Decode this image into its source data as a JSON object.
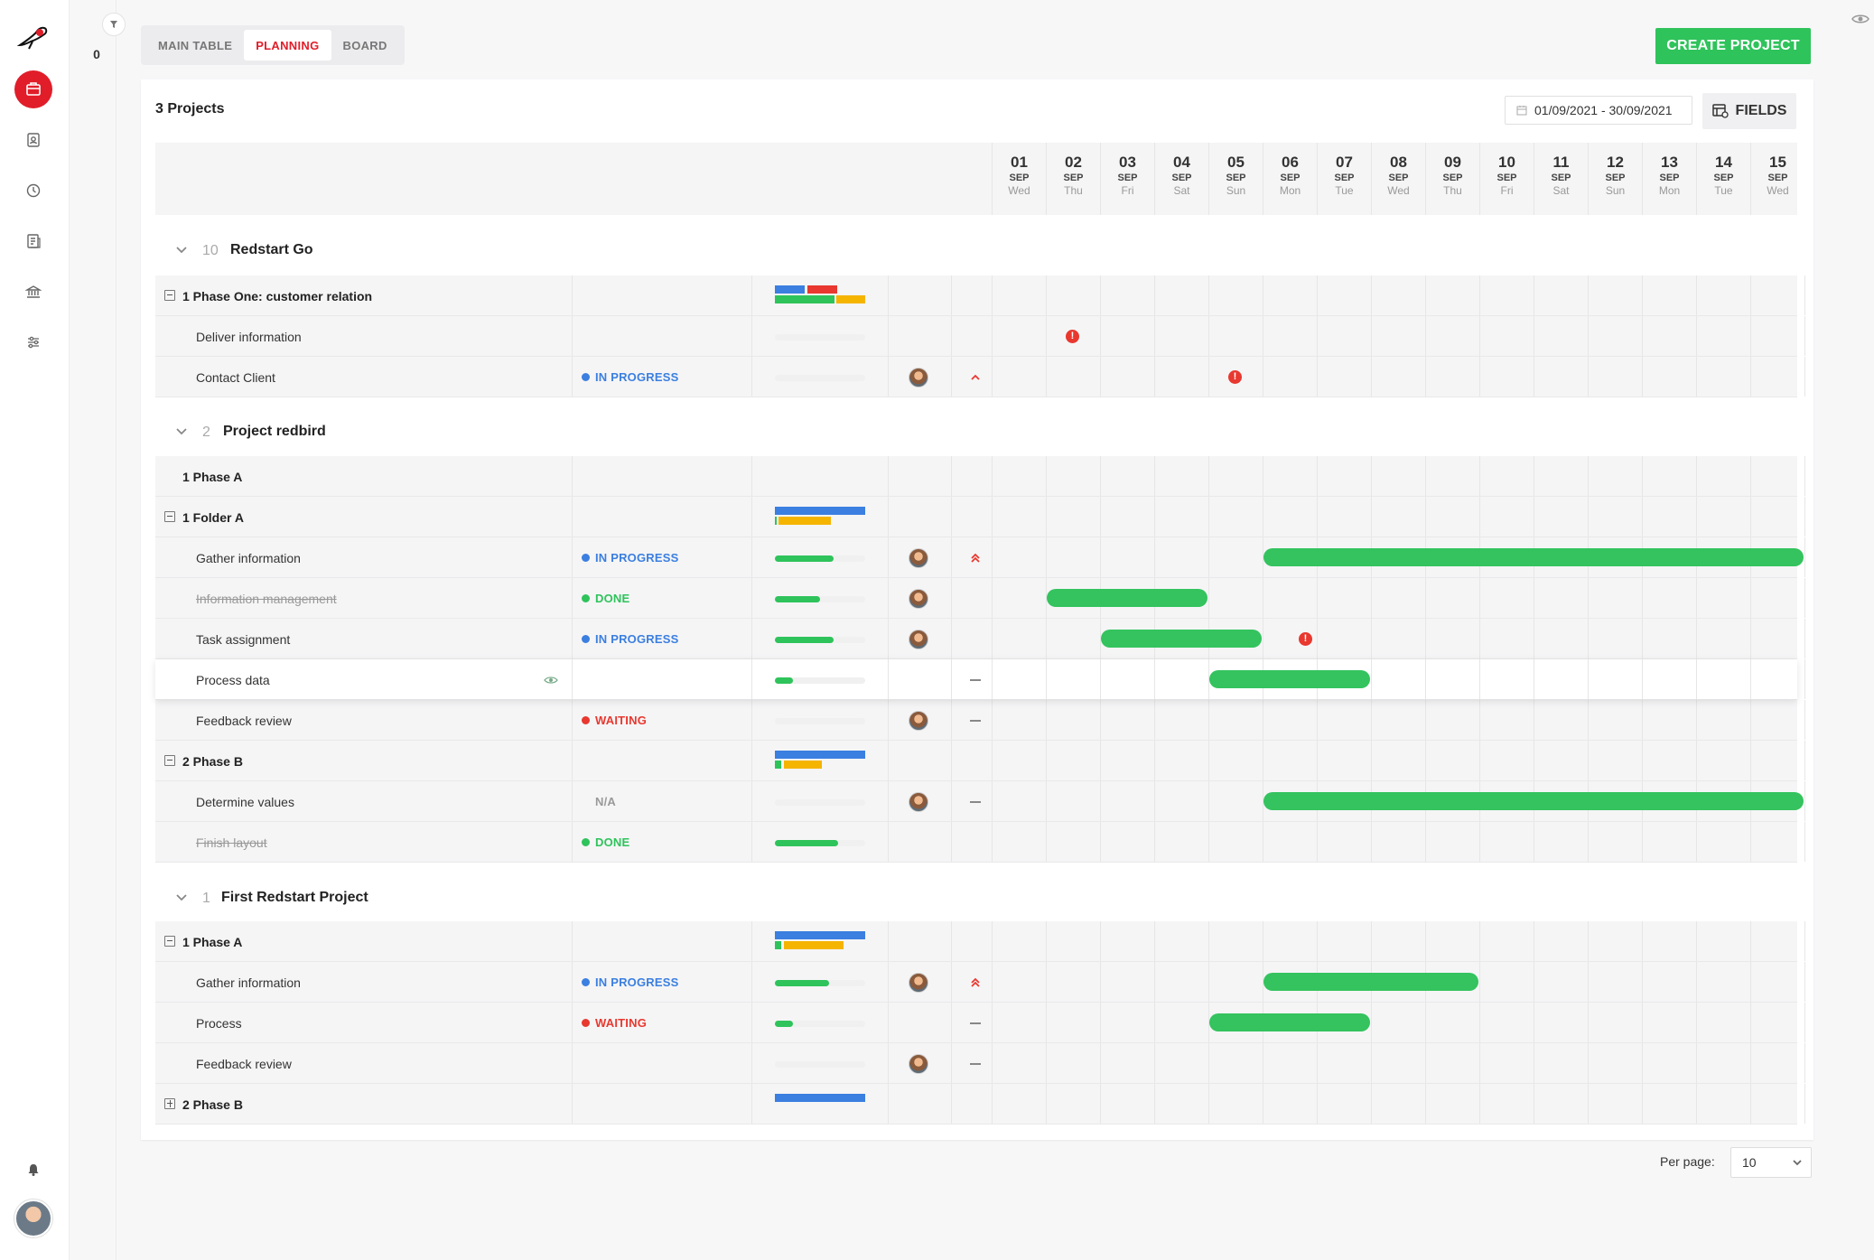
{
  "tabs": [
    "MAIN TABLE",
    "PLANNING",
    "BOARD"
  ],
  "active_tab": "PLANNING",
  "filter_count": "0",
  "create_button": "CREATE PROJECT",
  "projects_count": "3 Projects",
  "date_range": "01/09/2021 - 30/09/2021",
  "fields_button": "FIELDS",
  "per_page_label": "Per page:",
  "per_page_value": "10",
  "dates": [
    {
      "d": "01",
      "m": "SEP",
      "w": "Wed"
    },
    {
      "d": "02",
      "m": "SEP",
      "w": "Thu"
    },
    {
      "d": "03",
      "m": "SEP",
      "w": "Fri"
    },
    {
      "d": "04",
      "m": "SEP",
      "w": "Sat"
    },
    {
      "d": "05",
      "m": "SEP",
      "w": "Sun"
    },
    {
      "d": "06",
      "m": "SEP",
      "w": "Mon"
    },
    {
      "d": "07",
      "m": "SEP",
      "w": "Tue"
    },
    {
      "d": "08",
      "m": "SEP",
      "w": "Wed"
    },
    {
      "d": "09",
      "m": "SEP",
      "w": "Thu"
    },
    {
      "d": "10",
      "m": "SEP",
      "w": "Fri"
    },
    {
      "d": "11",
      "m": "SEP",
      "w": "Sat"
    },
    {
      "d": "12",
      "m": "SEP",
      "w": "Sun"
    },
    {
      "d": "13",
      "m": "SEP",
      "w": "Mon"
    },
    {
      "d": "14",
      "m": "SEP",
      "w": "Tue"
    },
    {
      "d": "15",
      "m": "SEP",
      "w": "Wed"
    }
  ],
  "status_colors": {
    "in_progress": "#3b7fe0",
    "done": "#2fc35b",
    "waiting": "#e8382f"
  },
  "groups": [
    {
      "count": "10",
      "name": "Redstart Go",
      "rows": [
        {
          "type": "section",
          "label": "1 Phase One: customer relation",
          "box": "minus",
          "summary": [
            [
              "#3b7fe0",
              0,
              0.33,
              0
            ],
            [
              "#e8382f",
              0.36,
              0.33,
              0
            ],
            [
              "#2fc35b",
              0,
              0.66,
              1
            ],
            [
              "#f5b400",
              0.68,
              0.32,
              1
            ]
          ]
        },
        {
          "type": "task",
          "label": "Deliver information",
          "progress": 0,
          "alerts": [
            1
          ]
        },
        {
          "type": "task",
          "label": "Contact Client",
          "status": "in_progress",
          "status_label": "IN PROGRESS",
          "progress": 0,
          "avatar": true,
          "priority": "high",
          "alerts": [
            4
          ]
        }
      ]
    },
    {
      "count": "2",
      "name": "Project redbird",
      "rows": [
        {
          "type": "section",
          "label": "1 Phase A"
        },
        {
          "type": "section",
          "label": "1 Folder A",
          "box": "minus",
          "summary": [
            [
              "#3b7fe0",
              0,
              1,
              0
            ],
            [
              "#2fc35b",
              0,
              0.02,
              1
            ],
            [
              "#f5b400",
              0.04,
              0.58,
              1
            ]
          ]
        },
        {
          "type": "task",
          "label": "Gather information",
          "status": "in_progress",
          "status_label": "IN PROGRESS",
          "progress": 0.65,
          "avatar": true,
          "priority": "highest",
          "bar": [
            5,
            15
          ]
        },
        {
          "type": "task",
          "label": "Information management",
          "strike": true,
          "status": "done",
          "status_label": "DONE",
          "progress": 0.5,
          "avatar": true,
          "bar": [
            1,
            4
          ]
        },
        {
          "type": "task",
          "label": "Task assignment",
          "status": "in_progress",
          "status_label": "IN PROGRESS",
          "progress": 0.65,
          "avatar": true,
          "bar": [
            2,
            5
          ],
          "alerts": [
            5.3
          ]
        },
        {
          "type": "task",
          "label": "Process data",
          "progress": 0.2,
          "priority": "none",
          "bar": [
            4,
            7
          ],
          "hover": true
        },
        {
          "type": "task",
          "label": "Feedback review",
          "status": "waiting",
          "status_label": "WAITING",
          "progress": 0,
          "avatar": true,
          "priority": "none"
        },
        {
          "type": "section",
          "label": "2 Phase B",
          "box": "minus",
          "summary": [
            [
              "#3b7fe0",
              0,
              1,
              0
            ],
            [
              "#2fc35b",
              0,
              0.07,
              1
            ],
            [
              "#f5b400",
              0.1,
              0.42,
              1
            ]
          ]
        },
        {
          "type": "task",
          "label": "Determine values",
          "status": "na",
          "status_label": "N/A",
          "progress": 0,
          "avatar": true,
          "priority": "none",
          "bar": [
            5,
            15
          ]
        },
        {
          "type": "task",
          "label": "Finish layout",
          "strike": true,
          "status": "done",
          "status_label": "DONE",
          "progress": 0.7
        }
      ]
    },
    {
      "count": "1",
      "name": "First Redstart Project",
      "rows": [
        {
          "type": "section",
          "label": "1 Phase A",
          "box": "minus",
          "summary": [
            [
              "#3b7fe0",
              0,
              1,
              0
            ],
            [
              "#2fc35b",
              0,
              0.07,
              1
            ],
            [
              "#f5b400",
              0.1,
              0.66,
              1
            ]
          ]
        },
        {
          "type": "task",
          "label": "Gather information",
          "status": "in_progress",
          "status_label": "IN PROGRESS",
          "progress": 0.6,
          "avatar": true,
          "priority": "highest",
          "bar": [
            5,
            9
          ]
        },
        {
          "type": "task",
          "label": "Process",
          "status": "waiting",
          "status_label": "WAITING",
          "progress": 0.2,
          "priority": "none",
          "bar": [
            4,
            7
          ]
        },
        {
          "type": "task",
          "label": "Feedback review",
          "progress": 0,
          "avatar": true,
          "priority": "none"
        },
        {
          "type": "section",
          "label": "2 Phase B",
          "box": "plus",
          "summary": [
            [
              "#3b7fe0",
              0,
              1,
              0
            ]
          ]
        }
      ]
    }
  ]
}
